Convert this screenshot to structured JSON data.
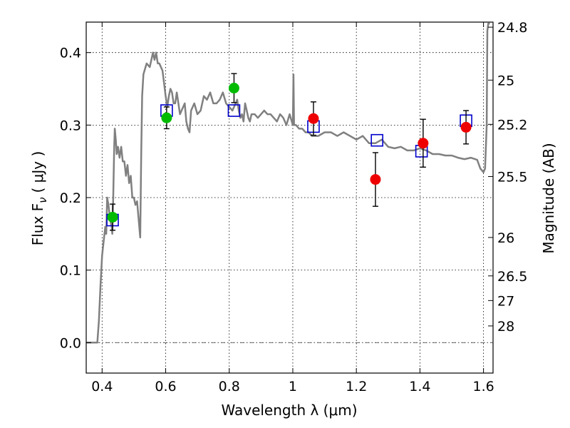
{
  "chart_data": {
    "type": "scatter",
    "xlabel": "Wavelength  λ (μm)",
    "ylabel": "Flux  F",
    "ylabel_subscript": "ν",
    "ylabel_unit": "( μJy )",
    "y2label": "Magnitude (AB)",
    "xlim": [
      0.35,
      1.63
    ],
    "ylim": [
      -0.042,
      0.442
    ],
    "xticks": [
      0.4,
      0.6,
      0.8,
      1.0,
      1.2,
      1.4,
      1.6
    ],
    "xtick_labels": [
      "0.4",
      "0.6",
      "0.8",
      "1",
      "1.2",
      "1.4",
      "1.6"
    ],
    "yticks": [
      0.0,
      0.1,
      0.2,
      0.3,
      0.4
    ],
    "ytick_labels": [
      "0.0",
      "0.1",
      "0.2",
      "0.3",
      "0.4"
    ],
    "magnitude_ticks": [
      {
        "label": "24.8",
        "flux": 0.435
      },
      {
        "label": "25",
        "flux": 0.362
      },
      {
        "label": "25.2",
        "flux": 0.301
      },
      {
        "label": "25.5",
        "flux": 0.229
      },
      {
        "label": "26",
        "flux": 0.145
      },
      {
        "label": "26.5",
        "flux": 0.092
      },
      {
        "label": "27",
        "flux": 0.058
      },
      {
        "label": "28",
        "flux": 0.023
      }
    ],
    "grid": true,
    "zero_line": true,
    "colors": {
      "model": "#808080",
      "model_photometry": "#0000cc",
      "optical": "#00bb00",
      "nir": "#ee0000",
      "errorbar": "#000000"
    },
    "model_spectrum": {
      "x": [
        0.35,
        0.385,
        0.39,
        0.395,
        0.4,
        0.405,
        0.41,
        0.413,
        0.416,
        0.42,
        0.425,
        0.43,
        0.432,
        0.435,
        0.438,
        0.44,
        0.443,
        0.446,
        0.45,
        0.455,
        0.46,
        0.465,
        0.47,
        0.475,
        0.48,
        0.485,
        0.49,
        0.495,
        0.5,
        0.505,
        0.51,
        0.515,
        0.52,
        0.523,
        0.526,
        0.53,
        0.54,
        0.55,
        0.56,
        0.565,
        0.57,
        0.575,
        0.58,
        0.59,
        0.6,
        0.605,
        0.61,
        0.615,
        0.62,
        0.625,
        0.63,
        0.635,
        0.64,
        0.645,
        0.65,
        0.655,
        0.66,
        0.665,
        0.67,
        0.675,
        0.68,
        0.69,
        0.7,
        0.71,
        0.72,
        0.73,
        0.74,
        0.75,
        0.76,
        0.77,
        0.78,
        0.79,
        0.8,
        0.81,
        0.82,
        0.825,
        0.83,
        0.835,
        0.84,
        0.845,
        0.85,
        0.855,
        0.86,
        0.865,
        0.87,
        0.88,
        0.89,
        0.9,
        0.91,
        0.92,
        0.93,
        0.94,
        0.95,
        0.96,
        0.97,
        0.98,
        0.99,
        1.0,
        1.002,
        1.004,
        1.006,
        1.01,
        1.02,
        1.03,
        1.04,
        1.05,
        1.06,
        1.08,
        1.1,
        1.12,
        1.14,
        1.16,
        1.18,
        1.2,
        1.22,
        1.24,
        1.26,
        1.28,
        1.3,
        1.32,
        1.34,
        1.36,
        1.38,
        1.4,
        1.42,
        1.44,
        1.46,
        1.48,
        1.5,
        1.52,
        1.54,
        1.56,
        1.58,
        1.59,
        1.6,
        1.605,
        1.61,
        1.612,
        1.615,
        1.62
      ],
      "y": [
        0.0,
        0.0,
        0.03,
        0.08,
        0.12,
        0.14,
        0.16,
        0.15,
        0.2,
        0.19,
        0.17,
        0.16,
        0.15,
        0.2,
        0.27,
        0.295,
        0.28,
        0.26,
        0.27,
        0.255,
        0.27,
        0.25,
        0.25,
        0.23,
        0.245,
        0.22,
        0.23,
        0.2,
        0.2,
        0.19,
        0.195,
        0.17,
        0.145,
        0.26,
        0.34,
        0.37,
        0.385,
        0.38,
        0.4,
        0.39,
        0.4,
        0.385,
        0.385,
        0.375,
        0.34,
        0.325,
        0.34,
        0.35,
        0.345,
        0.33,
        0.33,
        0.345,
        0.33,
        0.315,
        0.32,
        0.325,
        0.33,
        0.305,
        0.295,
        0.29,
        0.32,
        0.33,
        0.315,
        0.32,
        0.34,
        0.335,
        0.345,
        0.33,
        0.33,
        0.335,
        0.345,
        0.33,
        0.325,
        0.32,
        0.33,
        0.335,
        0.32,
        0.31,
        0.315,
        0.305,
        0.33,
        0.32,
        0.31,
        0.305,
        0.315,
        0.315,
        0.31,
        0.315,
        0.32,
        0.315,
        0.315,
        0.31,
        0.305,
        0.315,
        0.31,
        0.3,
        0.315,
        0.3,
        0.37,
        0.3,
        0.3,
        0.3,
        0.295,
        0.295,
        0.29,
        0.29,
        0.285,
        0.285,
        0.29,
        0.29,
        0.285,
        0.29,
        0.285,
        0.28,
        0.285,
        0.275,
        0.275,
        0.28,
        0.27,
        0.268,
        0.27,
        0.265,
        0.265,
        0.268,
        0.265,
        0.26,
        0.26,
        0.258,
        0.258,
        0.255,
        0.253,
        0.255,
        0.252,
        0.24,
        0.235,
        0.24,
        0.3,
        0.43,
        0.44,
        0.44
      ]
    },
    "model_photometry": {
      "x": [
        0.433,
        0.603,
        0.815,
        1.065,
        1.265,
        1.405,
        1.545
      ],
      "y": [
        0.169,
        0.32,
        0.32,
        0.298,
        0.279,
        0.264,
        0.306
      ]
    },
    "observed_optical": {
      "x": [
        0.433,
        0.603,
        0.815
      ],
      "y": [
        0.173,
        0.31,
        0.351
      ],
      "yerr": [
        0.018,
        0.015,
        0.02
      ]
    },
    "observed_nir": {
      "x": [
        1.065,
        1.26,
        1.41,
        1.545
      ],
      "y": [
        0.309,
        0.225,
        0.275,
        0.297
      ],
      "yerr": [
        0.023,
        0.037,
        0.033,
        0.023
      ]
    }
  }
}
